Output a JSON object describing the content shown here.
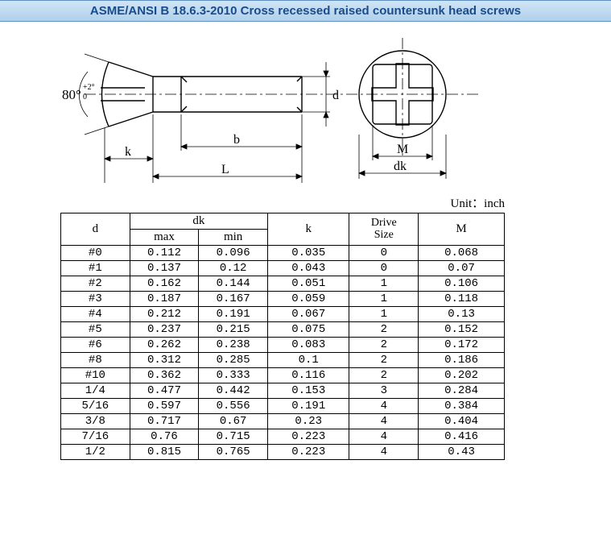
{
  "header": {
    "title": "ASME/ANSI B 18.6.3-2010 Cross recessed raised countersunk head screws",
    "background_gradient": [
      "#d0e4f5",
      "#c0daf0",
      "#b0d0eb"
    ],
    "border_color": "#6090c0",
    "text_color": "#1a4c8c"
  },
  "diagram": {
    "angle_label": "80°",
    "angle_tol_top": "+2°",
    "angle_tol_bot": "0",
    "dim_k": "k",
    "dim_L": "L",
    "dim_b": "b",
    "dim_d": "d",
    "dim_M": "M",
    "dim_dk": "dk",
    "line_color": "#000000",
    "fill_color": "#ffffff"
  },
  "table": {
    "unit_label": "Unit：inch",
    "headers": {
      "d": "d",
      "dk": "dk",
      "dk_max": "max",
      "dk_min": "min",
      "k": "k",
      "drive_size": "Drive\nSize",
      "m": "M"
    },
    "columns_widths": {
      "d": 80,
      "dk_each": 80,
      "k": 95,
      "drive": 80,
      "m": 100
    },
    "rows": [
      {
        "d": "#0",
        "dk_max": "0.112",
        "dk_min": "0.096",
        "k": "0.035",
        "drive": "0",
        "m": "0.068"
      },
      {
        "d": "#1",
        "dk_max": "0.137",
        "dk_min": "0.12",
        "k": "0.043",
        "drive": "0",
        "m": "0.07"
      },
      {
        "d": "#2",
        "dk_max": "0.162",
        "dk_min": "0.144",
        "k": "0.051",
        "drive": "1",
        "m": "0.106"
      },
      {
        "d": "#3",
        "dk_max": "0.187",
        "dk_min": "0.167",
        "k": "0.059",
        "drive": "1",
        "m": "0.118"
      },
      {
        "d": "#4",
        "dk_max": "0.212",
        "dk_min": "0.191",
        "k": "0.067",
        "drive": "1",
        "m": "0.13"
      },
      {
        "d": "#5",
        "dk_max": "0.237",
        "dk_min": "0.215",
        "k": "0.075",
        "drive": "2",
        "m": "0.152"
      },
      {
        "d": "#6",
        "dk_max": "0.262",
        "dk_min": "0.238",
        "k": "0.083",
        "drive": "2",
        "m": "0.172"
      },
      {
        "d": "#8",
        "dk_max": "0.312",
        "dk_min": "0.285",
        "k": "0.1",
        "drive": "2",
        "m": "0.186"
      },
      {
        "d": "#10",
        "dk_max": "0.362",
        "dk_min": "0.333",
        "k": "0.116",
        "drive": "2",
        "m": "0.202"
      },
      {
        "d": "1/4",
        "dk_max": "0.477",
        "dk_min": "0.442",
        "k": "0.153",
        "drive": "3",
        "m": "0.284"
      },
      {
        "d": "5/16",
        "dk_max": "0.597",
        "dk_min": "0.556",
        "k": "0.191",
        "drive": "4",
        "m": "0.384"
      },
      {
        "d": "3/8",
        "dk_max": "0.717",
        "dk_min": "0.67",
        "k": "0.23",
        "drive": "4",
        "m": "0.404"
      },
      {
        "d": "7/16",
        "dk_max": "0.76",
        "dk_min": "0.715",
        "k": "0.223",
        "drive": "4",
        "m": "0.416"
      },
      {
        "d": "1/2",
        "dk_max": "0.815",
        "dk_min": "0.765",
        "k": "0.223",
        "drive": "4",
        "m": "0.43"
      }
    ],
    "border_color": "#000000",
    "cell_font": "Courier New",
    "cell_fontsize": 14
  }
}
